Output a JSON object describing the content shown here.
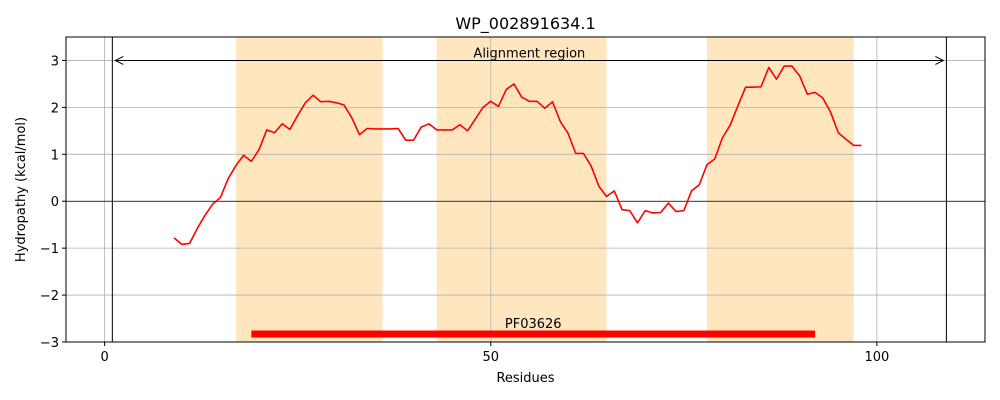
{
  "chart_data": {
    "type": "line",
    "title": "WP_002891634.1",
    "xlabel": "Residues",
    "ylabel": "Hydropathy (kcal/mol)",
    "xlim": [
      -5,
      114
    ],
    "ylim": [
      -3,
      3.5
    ],
    "xticks": [
      0,
      50,
      100
    ],
    "yticks": [
      -3,
      -2,
      -1,
      0,
      1,
      2,
      3
    ],
    "ytick_labels": [
      "−3",
      "−2",
      "−1",
      "0",
      "1",
      "2",
      "3"
    ],
    "grid": true,
    "series": [
      {
        "color": "#ff0000",
        "x": [
          9,
          10,
          11,
          12,
          13,
          14,
          15,
          16,
          17,
          18,
          19,
          20,
          21,
          22,
          23,
          24,
          25,
          26,
          27,
          28,
          29,
          30,
          31,
          32,
          33,
          34,
          35,
          36,
          37,
          38,
          39,
          40,
          41,
          42,
          43,
          44,
          45,
          46,
          47,
          48,
          49,
          50,
          51,
          52,
          53,
          54,
          55,
          56,
          57,
          58,
          59,
          60,
          61,
          62,
          63,
          64,
          65,
          66,
          67,
          68,
          69,
          70,
          71,
          72,
          73,
          74,
          75,
          76,
          77,
          78,
          79,
          80,
          81,
          82,
          83,
          84,
          85,
          86,
          87,
          88,
          89,
          90,
          91,
          92,
          93,
          94,
          95,
          96,
          97,
          98
        ],
        "y": [
          -0.78,
          -0.92,
          -0.9,
          -0.58,
          -0.3,
          -0.06,
          0.08,
          0.48,
          0.76,
          0.98,
          0.85,
          1.1,
          1.52,
          1.46,
          1.65,
          1.53,
          1.83,
          2.1,
          2.26,
          2.12,
          2.13,
          2.1,
          2.05,
          1.78,
          1.42,
          1.55,
          1.54,
          1.54,
          1.54,
          1.55,
          1.3,
          1.3,
          1.58,
          1.65,
          1.52,
          1.52,
          1.52,
          1.63,
          1.5,
          1.75,
          2.0,
          2.13,
          2.02,
          2.38,
          2.5,
          2.22,
          2.13,
          2.13,
          1.98,
          2.12,
          1.7,
          1.45,
          1.02,
          1.02,
          0.75,
          0.32,
          0.1,
          0.22,
          -0.18,
          -0.2,
          -0.46,
          -0.2,
          -0.25,
          -0.24,
          -0.04,
          -0.22,
          -0.2,
          0.22,
          0.35,
          0.78,
          0.9,
          1.35,
          1.62,
          2.03,
          2.43,
          2.43,
          2.44,
          2.85,
          2.6,
          2.88,
          2.88,
          2.67,
          2.28,
          2.32,
          2.2,
          1.9,
          1.46,
          1.32,
          1.19,
          1.19
        ]
      }
    ],
    "bands": [
      [
        17,
        36
      ],
      [
        43,
        65
      ],
      [
        78,
        97
      ]
    ],
    "band_color": "#ffe6bf",
    "alignment": {
      "start": 1,
      "end": 109,
      "y": 3.0,
      "label": "Alignment region"
    },
    "domain": {
      "start": 19,
      "end": 92,
      "y": -2.83,
      "label": "PF03626",
      "color": "#ff0000"
    }
  }
}
